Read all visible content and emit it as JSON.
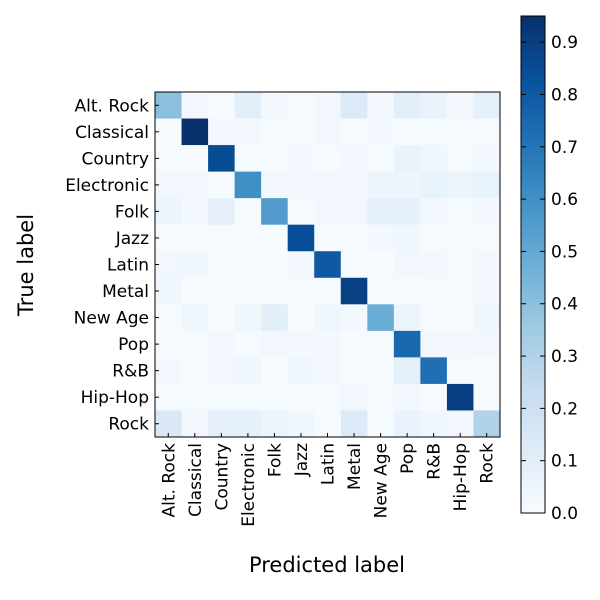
{
  "chart_data": {
    "type": "heatmap",
    "xlabel": "Predicted label",
    "ylabel": "True label",
    "categories": [
      "Alt. Rock",
      "Classical",
      "Country",
      "Electronic",
      "Folk",
      "Jazz",
      "Latin",
      "Metal",
      "New Age",
      "Pop",
      "R&B",
      "Hip-Hop",
      "Rock"
    ],
    "matrix": [
      [
        0.4,
        0.02,
        0.01,
        0.1,
        0.02,
        0.01,
        0.03,
        0.13,
        0.03,
        0.1,
        0.06,
        0.03,
        0.08
      ],
      [
        0.01,
        0.96,
        0.02,
        0.02,
        0.01,
        0.01,
        0.03,
        0.01,
        0.02,
        0.01,
        0.01,
        0.01,
        0.01
      ],
      [
        0.01,
        0.01,
        0.85,
        0.01,
        0.01,
        0.02,
        0.01,
        0.02,
        0.01,
        0.06,
        0.04,
        0.01,
        0.02
      ],
      [
        0.03,
        0.02,
        0.01,
        0.6,
        0.02,
        0.02,
        0.03,
        0.02,
        0.05,
        0.05,
        0.07,
        0.05,
        0.07
      ],
      [
        0.05,
        0.02,
        0.08,
        0.01,
        0.55,
        0.01,
        0.03,
        0.03,
        0.08,
        0.08,
        0.03,
        0.01,
        0.02
      ],
      [
        0.01,
        0.01,
        0.01,
        0.01,
        0.01,
        0.84,
        0.01,
        0.01,
        0.02,
        0.04,
        0.01,
        0.01,
        0.01
      ],
      [
        0.03,
        0.04,
        0.01,
        0.01,
        0.01,
        0.02,
        0.8,
        0.01,
        0.01,
        0.03,
        0.02,
        0.01,
        0.02
      ],
      [
        0.04,
        0.01,
        0.01,
        0.01,
        0.01,
        0.01,
        0.01,
        0.89,
        0.01,
        0.01,
        0.01,
        0.01,
        0.02
      ],
      [
        0.01,
        0.04,
        0.01,
        0.04,
        0.1,
        0.01,
        0.04,
        0.02,
        0.48,
        0.05,
        0.01,
        0.01,
        0.04
      ],
      [
        0.01,
        0.01,
        0.02,
        0.01,
        0.03,
        0.02,
        0.02,
        0.01,
        0.01,
        0.75,
        0.03,
        0.02,
        0.03
      ],
      [
        0.02,
        0.01,
        0.03,
        0.04,
        0.01,
        0.04,
        0.02,
        0.01,
        0.01,
        0.08,
        0.72,
        0.01,
        0.01
      ],
      [
        0.01,
        0.01,
        0.01,
        0.01,
        0.01,
        0.01,
        0.01,
        0.03,
        0.01,
        0.02,
        0.01,
        0.9,
        0.01
      ],
      [
        0.14,
        0.02,
        0.08,
        0.08,
        0.05,
        0.04,
        0.01,
        0.13,
        0.01,
        0.06,
        0.04,
        0.02,
        0.3
      ]
    ],
    "colorbar": {
      "min": 0.0,
      "max": 0.95,
      "ticks": [
        "0.0",
        "0.1",
        "0.2",
        "0.3",
        "0.4",
        "0.5",
        "0.6",
        "0.7",
        "0.8",
        "0.9"
      ],
      "colormap": "Blues",
      "color_low": "#f7fbff",
      "color_high": "#08306b"
    },
    "grid": false,
    "legend": "colorbar-right"
  }
}
